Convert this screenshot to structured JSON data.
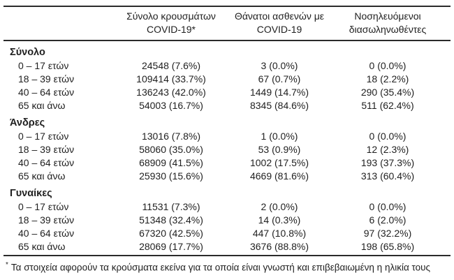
{
  "header": {
    "columns": [
      {
        "line1": "Σύνολο κρουσμάτων",
        "line2": "COVID-19*"
      },
      {
        "line1": "Θάνατοι ασθενών με",
        "line2": "COVID-19"
      },
      {
        "line1": "Νοσηλευόμενοι",
        "line2": "διασωληνωθέντες"
      }
    ]
  },
  "sections": [
    {
      "title": "Σύνολο",
      "rows": [
        {
          "label": "0 – 17 ετών",
          "cases": "24548 (7.6%)",
          "deaths": "3 (0.0%)",
          "intubated": "0 (0.0%)"
        },
        {
          "label": "18 – 39 ετών",
          "cases": "109414 (33.7%)",
          "deaths": "67 (0.7%)",
          "intubated": "18 (2.2%)"
        },
        {
          "label": "40 – 64 ετών",
          "cases": "136243 (42.0%)",
          "deaths": "1449 (14.7%)",
          "intubated": "290 (35.4%)"
        },
        {
          "label": "65 και άνω",
          "cases": "54003 (16.7%)",
          "deaths": "8345 (84.6%)",
          "intubated": "511 (62.4%)"
        }
      ]
    },
    {
      "title": "Άνδρες",
      "rows": [
        {
          "label": "0 – 17 ετών",
          "cases": "13016 (7.8%)",
          "deaths": "1 (0.0%)",
          "intubated": "0 (0.0%)"
        },
        {
          "label": "18 – 39 ετών",
          "cases": "58060 (35.0%)",
          "deaths": "53 (0.9%)",
          "intubated": "12 (2.3%)"
        },
        {
          "label": "40 – 64 ετών",
          "cases": "68909 (41.5%)",
          "deaths": "1002 (17.5%)",
          "intubated": "193 (37.3%)"
        },
        {
          "label": "65 και άνω",
          "cases": "25930 (15.6%)",
          "deaths": "4669 (81.6%)",
          "intubated": "313 (60.4%)"
        }
      ]
    },
    {
      "title": "Γυναίκες",
      "rows": [
        {
          "label": "0 – 17 ετών",
          "cases": "11531 (7.3%)",
          "deaths": "2 (0.0%)",
          "intubated": "0 (0.0%)"
        },
        {
          "label": "18 – 39 ετών",
          "cases": "51348 (32.4%)",
          "deaths": "14 (0.3%)",
          "intubated": "6 (2.0%)"
        },
        {
          "label": "40 – 64 ετών",
          "cases": "67320 (42.5%)",
          "deaths": "447 (10.8%)",
          "intubated": "97 (32.2%)"
        },
        {
          "label": "65 και άνω",
          "cases": "28069 (17.7%)",
          "deaths": "3676 (88.8%)",
          "intubated": "198 (65.8%)"
        }
      ]
    }
  ],
  "footnote": {
    "marker": "*",
    "text": "Τα στοιχεία αφορούν τα κρούσματα εκείνα για τα οποία είναι γνωστή και επιβεβαιωμένη η ηλικία τους"
  },
  "colors": {
    "background": "#ffffff",
    "text": "#1f1f1f",
    "rule": "#2b2b2b"
  }
}
